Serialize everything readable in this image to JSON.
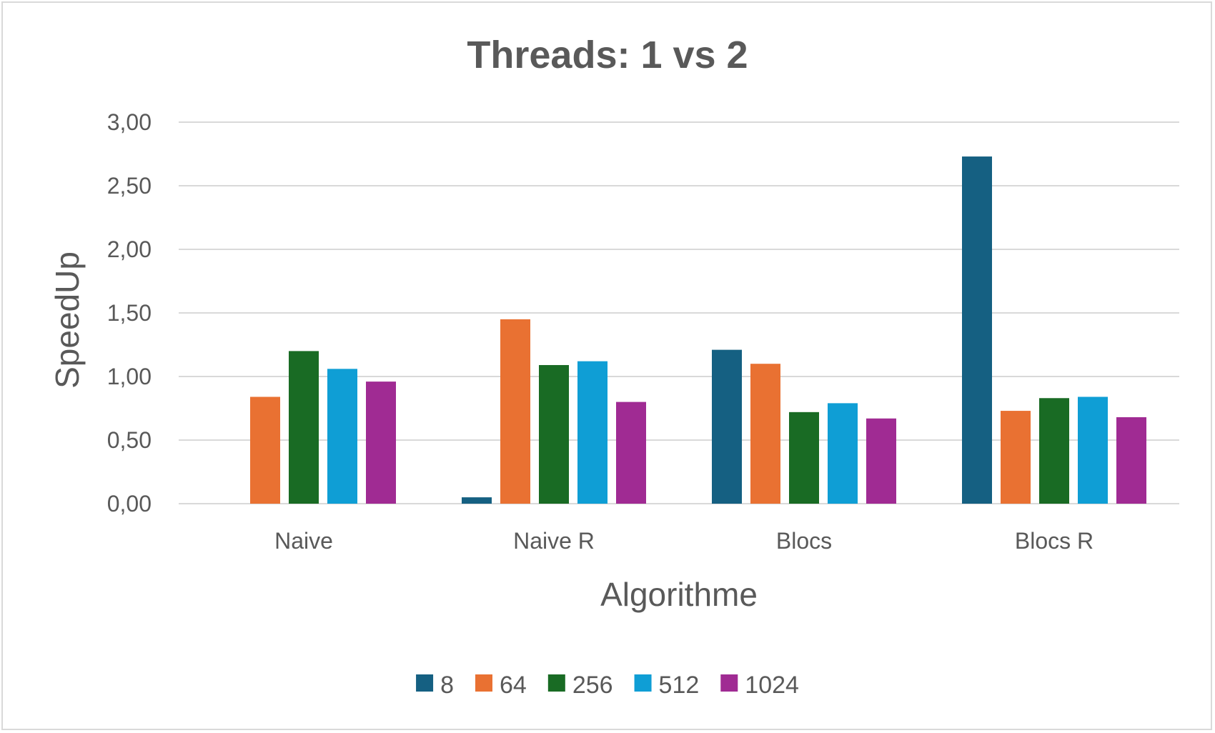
{
  "chart_data": {
    "type": "bar",
    "title": "Threads: 1 vs 2",
    "xlabel": "Algorithme",
    "ylabel": "SpeedUp",
    "categories": [
      "Naive",
      "Naive R",
      "Blocs",
      "Blocs R"
    ],
    "ylim": [
      0,
      3
    ],
    "yticks": [
      0,
      0.5,
      1,
      1.5,
      2,
      2.5,
      3
    ],
    "ytick_labels": [
      "0,00",
      "0,50",
      "1,00",
      "1,50",
      "2,00",
      "2,50",
      "3,00"
    ],
    "grid": true,
    "legend_position": "bottom",
    "series": [
      {
        "name": "8",
        "color": "#156082",
        "values": [
          0,
          0.05,
          1.21,
          2.73
        ]
      },
      {
        "name": "64",
        "color": "#E97132",
        "values": [
          0.84,
          1.45,
          1.1,
          0.73
        ]
      },
      {
        "name": "256",
        "color": "#196B24",
        "values": [
          1.2,
          1.09,
          0.72,
          0.83
        ]
      },
      {
        "name": "512",
        "color": "#0F9ED5",
        "values": [
          1.06,
          1.12,
          0.79,
          0.84
        ]
      },
      {
        "name": "1024",
        "color": "#A02B93",
        "values": [
          0.96,
          0.8,
          0.67,
          0.68
        ]
      }
    ]
  },
  "colors": {
    "grid": "#d9d9d9",
    "text": "#595959",
    "border": "#d9d9d9"
  }
}
